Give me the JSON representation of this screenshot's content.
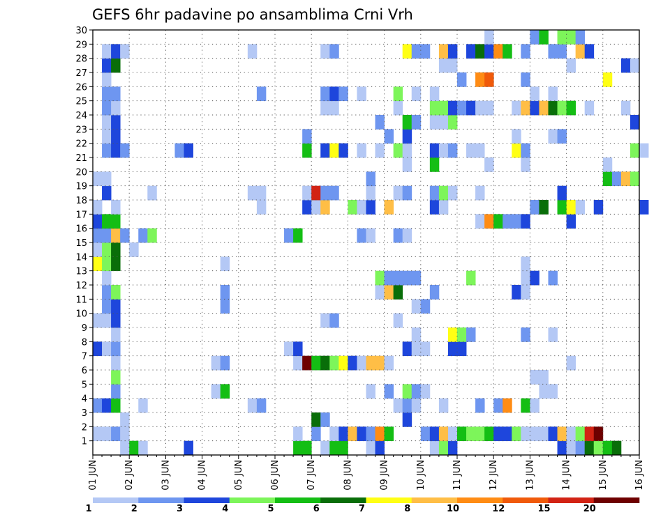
{
  "chart_data": {
    "type": "heatmap",
    "title": "GEFS 6hr padavine po ansamblima Crni Vrh",
    "x_ticks": [
      "01 JUN",
      "02 JUN",
      "03 JUN",
      "04 JUN",
      "05 JUN",
      "06 JUN",
      "07 JUN",
      "08 JUN",
      "09 JUN",
      "10 JUN",
      "11 JUN",
      "12 JUN",
      "13 JUN",
      "14 JUN",
      "15 JUN",
      "16 JUN"
    ],
    "y_ticks": [
      "1",
      "2",
      "3",
      "4",
      "5",
      "6",
      "7",
      "8",
      "9",
      "10",
      "11",
      "12",
      "13",
      "14",
      "15",
      "16",
      "17",
      "18",
      "19",
      "20",
      "21",
      "22",
      "23",
      "24",
      "25",
      "26",
      "27",
      "28",
      "29",
      "30"
    ],
    "x_range": [
      "01 JUN 00Z",
      "16 JUN 00Z"
    ],
    "x_step_hours": 6,
    "y_range": [
      0,
      30
    ],
    "grid": true,
    "legend": {
      "placement": "bottom",
      "labels": [
        "1",
        "2",
        "3",
        "4",
        "5",
        "6",
        "7",
        "8",
        "10",
        "12",
        "15",
        "20"
      ],
      "colors": [
        "#b4c8f5",
        "#6e96f0",
        "#1e46dc",
        "#7df55a",
        "#14be14",
        "#096e09",
        "#ffff14",
        "#ffbe46",
        "#ff8c14",
        "#f05a0a",
        "#d22314",
        "#6e0000"
      ]
    },
    "level_colors": {
      "1": "#b4c8f5",
      "2": "#6e96f0",
      "3": "#1e46dc",
      "4": "#7df55a",
      "5": "#14be14",
      "6": "#096e09",
      "7": "#ffff14",
      "8": "#ffbe46",
      "9": "#ff8c14",
      "10": "#f05a0a",
      "11": "#d22314",
      "12": "#6e0000"
    },
    "cells_note": "each cell = [member, 6h step index from 01 JUN 00Z, color level 1-12]",
    "cells": [
      [
        1,
        3,
        1
      ],
      [
        1,
        4,
        5
      ],
      [
        1,
        5,
        1
      ],
      [
        1,
        10,
        3
      ],
      [
        1,
        22,
        5
      ],
      [
        1,
        23,
        5
      ],
      [
        1,
        25,
        1
      ],
      [
        1,
        26,
        5
      ],
      [
        1,
        27,
        5
      ],
      [
        1,
        30,
        1
      ],
      [
        1,
        31,
        3
      ],
      [
        1,
        37,
        1
      ],
      [
        1,
        38,
        4
      ],
      [
        1,
        39,
        3
      ],
      [
        1,
        51,
        3
      ],
      [
        1,
        52,
        1
      ],
      [
        1,
        53,
        2
      ],
      [
        1,
        54,
        6
      ],
      [
        1,
        55,
        4
      ],
      [
        1,
        56,
        5
      ],
      [
        1,
        57,
        6
      ],
      [
        2,
        0,
        1
      ],
      [
        2,
        1,
        1
      ],
      [
        2,
        2,
        2
      ],
      [
        2,
        3,
        1
      ],
      [
        2,
        22,
        1
      ],
      [
        2,
        24,
        2
      ],
      [
        2,
        26,
        1
      ],
      [
        2,
        27,
        3
      ],
      [
        2,
        28,
        8
      ],
      [
        2,
        29,
        3
      ],
      [
        2,
        30,
        2
      ],
      [
        2,
        31,
        9
      ],
      [
        2,
        32,
        5
      ],
      [
        2,
        36,
        2
      ],
      [
        2,
        37,
        3
      ],
      [
        2,
        38,
        8
      ],
      [
        2,
        39,
        1
      ],
      [
        2,
        40,
        5
      ],
      [
        2,
        41,
        4
      ],
      [
        2,
        42,
        4
      ],
      [
        2,
        43,
        5
      ],
      [
        2,
        44,
        3
      ],
      [
        2,
        45,
        3
      ],
      [
        2,
        46,
        4
      ],
      [
        2,
        47,
        1
      ],
      [
        2,
        48,
        1
      ],
      [
        2,
        49,
        1
      ],
      [
        2,
        50,
        3
      ],
      [
        2,
        51,
        8
      ],
      [
        2,
        52,
        1
      ],
      [
        2,
        53,
        4
      ],
      [
        2,
        54,
        11
      ],
      [
        2,
        55,
        12
      ],
      [
        3,
        3,
        1
      ],
      [
        3,
        24,
        6
      ],
      [
        3,
        25,
        2
      ],
      [
        3,
        34,
        3
      ],
      [
        4,
        0,
        2
      ],
      [
        4,
        1,
        3
      ],
      [
        4,
        2,
        5
      ],
      [
        4,
        5,
        1
      ],
      [
        4,
        17,
        1
      ],
      [
        4,
        18,
        2
      ],
      [
        4,
        33,
        1
      ],
      [
        4,
        34,
        2
      ],
      [
        4,
        35,
        1
      ],
      [
        4,
        38,
        1
      ],
      [
        4,
        42,
        2
      ],
      [
        4,
        44,
        2
      ],
      [
        4,
        45,
        9
      ],
      [
        4,
        47,
        5
      ],
      [
        4,
        48,
        1
      ],
      [
        5,
        2,
        2
      ],
      [
        5,
        13,
        1
      ],
      [
        5,
        14,
        5
      ],
      [
        5,
        30,
        1
      ],
      [
        5,
        32,
        2
      ],
      [
        5,
        34,
        4
      ],
      [
        5,
        35,
        2
      ],
      [
        5,
        36,
        1
      ],
      [
        5,
        49,
        1
      ],
      [
        5,
        50,
        1
      ],
      [
        6,
        2,
        4
      ],
      [
        6,
        48,
        1
      ],
      [
        6,
        49,
        1
      ],
      [
        7,
        2,
        1
      ],
      [
        7,
        13,
        1
      ],
      [
        7,
        14,
        2
      ],
      [
        7,
        22,
        1
      ],
      [
        7,
        23,
        12
      ],
      [
        7,
        24,
        5
      ],
      [
        7,
        25,
        6
      ],
      [
        7,
        26,
        4
      ],
      [
        7,
        27,
        7
      ],
      [
        7,
        28,
        3
      ],
      [
        7,
        29,
        1
      ],
      [
        7,
        30,
        8
      ],
      [
        7,
        31,
        8
      ],
      [
        7,
        32,
        1
      ],
      [
        7,
        52,
        1
      ],
      [
        8,
        0,
        3
      ],
      [
        8,
        1,
        1
      ],
      [
        8,
        2,
        2
      ],
      [
        8,
        21,
        1
      ],
      [
        8,
        22,
        3
      ],
      [
        8,
        34,
        3
      ],
      [
        8,
        35,
        1
      ],
      [
        8,
        36,
        1
      ],
      [
        8,
        39,
        3
      ],
      [
        8,
        40,
        3
      ],
      [
        9,
        2,
        1
      ],
      [
        9,
        35,
        1
      ],
      [
        9,
        39,
        7
      ],
      [
        9,
        40,
        4
      ],
      [
        9,
        41,
        2
      ],
      [
        9,
        47,
        2
      ],
      [
        9,
        50,
        1
      ],
      [
        10,
        0,
        1
      ],
      [
        10,
        1,
        1
      ],
      [
        10,
        2,
        3
      ],
      [
        10,
        25,
        1
      ],
      [
        10,
        26,
        2
      ],
      [
        10,
        33,
        1
      ],
      [
        11,
        1,
        2
      ],
      [
        11,
        2,
        3
      ],
      [
        11,
        14,
        2
      ],
      [
        11,
        35,
        1
      ],
      [
        11,
        36,
        2
      ],
      [
        12,
        1,
        2
      ],
      [
        12,
        2,
        4
      ],
      [
        12,
        14,
        2
      ],
      [
        12,
        31,
        1
      ],
      [
        12,
        32,
        8
      ],
      [
        12,
        33,
        6
      ],
      [
        12,
        37,
        2
      ],
      [
        12,
        46,
        3
      ],
      [
        12,
        47,
        1
      ],
      [
        13,
        1,
        1
      ],
      [
        13,
        31,
        4
      ],
      [
        13,
        32,
        2
      ],
      [
        13,
        33,
        2
      ],
      [
        13,
        34,
        2
      ],
      [
        13,
        35,
        2
      ],
      [
        13,
        41,
        4
      ],
      [
        13,
        47,
        1
      ],
      [
        13,
        48,
        3
      ],
      [
        13,
        50,
        2
      ],
      [
        14,
        0,
        7
      ],
      [
        14,
        1,
        4
      ],
      [
        14,
        2,
        6
      ],
      [
        14,
        14,
        1
      ],
      [
        14,
        47,
        1
      ],
      [
        15,
        0,
        1
      ],
      [
        15,
        1,
        4
      ],
      [
        15,
        2,
        6
      ],
      [
        15,
        4,
        1
      ],
      [
        16,
        0,
        2
      ],
      [
        16,
        1,
        2
      ],
      [
        16,
        2,
        8
      ],
      [
        16,
        3,
        2
      ],
      [
        16,
        5,
        2
      ],
      [
        16,
        6,
        4
      ],
      [
        16,
        21,
        2
      ],
      [
        16,
        22,
        5
      ],
      [
        16,
        29,
        2
      ],
      [
        16,
        30,
        1
      ],
      [
        16,
        33,
        2
      ],
      [
        16,
        34,
        1
      ],
      [
        17,
        0,
        3
      ],
      [
        17,
        1,
        5
      ],
      [
        17,
        2,
        5
      ],
      [
        17,
        42,
        1
      ],
      [
        17,
        43,
        9
      ],
      [
        17,
        44,
        5
      ],
      [
        17,
        45,
        2
      ],
      [
        17,
        46,
        2
      ],
      [
        17,
        47,
        3
      ],
      [
        17,
        52,
        3
      ],
      [
        18,
        0,
        1
      ],
      [
        18,
        2,
        1
      ],
      [
        18,
        18,
        1
      ],
      [
        18,
        23,
        3
      ],
      [
        18,
        24,
        1
      ],
      [
        18,
        25,
        8
      ],
      [
        18,
        28,
        4
      ],
      [
        18,
        29,
        1
      ],
      [
        18,
        30,
        3
      ],
      [
        18,
        32,
        8
      ],
      [
        18,
        37,
        3
      ],
      [
        18,
        38,
        1
      ],
      [
        18,
        48,
        2
      ],
      [
        18,
        49,
        6
      ],
      [
        18,
        51,
        5
      ],
      [
        18,
        52,
        7
      ],
      [
        18,
        53,
        1
      ],
      [
        18,
        55,
        3
      ],
      [
        18,
        60,
        3
      ],
      [
        19,
        1,
        3
      ],
      [
        19,
        6,
        1
      ],
      [
        19,
        17,
        1
      ],
      [
        19,
        18,
        1
      ],
      [
        19,
        23,
        1
      ],
      [
        19,
        24,
        11
      ],
      [
        19,
        25,
        2
      ],
      [
        19,
        26,
        2
      ],
      [
        19,
        30,
        1
      ],
      [
        19,
        33,
        1
      ],
      [
        19,
        34,
        2
      ],
      [
        19,
        37,
        2
      ],
      [
        19,
        38,
        4
      ],
      [
        19,
        39,
        1
      ],
      [
        19,
        42,
        1
      ],
      [
        19,
        51,
        3
      ],
      [
        20,
        0,
        1
      ],
      [
        20,
        1,
        1
      ],
      [
        20,
        30,
        2
      ],
      [
        20,
        56,
        5
      ],
      [
        20,
        57,
        2
      ],
      [
        20,
        58,
        8
      ],
      [
        20,
        59,
        4
      ],
      [
        21,
        34,
        1
      ],
      [
        21,
        37,
        5
      ],
      [
        21,
        43,
        1
      ],
      [
        21,
        47,
        1
      ],
      [
        21,
        56,
        1
      ],
      [
        22,
        1,
        2
      ],
      [
        22,
        2,
        3
      ],
      [
        22,
        3,
        2
      ],
      [
        22,
        9,
        2
      ],
      [
        22,
        10,
        3
      ],
      [
        22,
        23,
        5
      ],
      [
        22,
        25,
        3
      ],
      [
        22,
        26,
        7
      ],
      [
        22,
        27,
        3
      ],
      [
        22,
        29,
        1
      ],
      [
        22,
        31,
        1
      ],
      [
        22,
        33,
        4
      ],
      [
        22,
        34,
        1
      ],
      [
        22,
        37,
        3
      ],
      [
        22,
        38,
        1
      ],
      [
        22,
        39,
        2
      ],
      [
        22,
        41,
        1
      ],
      [
        22,
        42,
        1
      ],
      [
        22,
        46,
        7
      ],
      [
        22,
        47,
        2
      ],
      [
        22,
        59,
        4
      ],
      [
        22,
        60,
        1
      ],
      [
        23,
        1,
        1
      ],
      [
        23,
        2,
        3
      ],
      [
        23,
        23,
        2
      ],
      [
        23,
        32,
        2
      ],
      [
        23,
        34,
        3
      ],
      [
        23,
        46,
        1
      ],
      [
        23,
        50,
        1
      ],
      [
        23,
        51,
        2
      ],
      [
        24,
        1,
        1
      ],
      [
        24,
        2,
        3
      ],
      [
        24,
        31,
        2
      ],
      [
        24,
        34,
        5
      ],
      [
        24,
        35,
        2
      ],
      [
        24,
        37,
        1
      ],
      [
        24,
        38,
        1
      ],
      [
        24,
        39,
        4
      ],
      [
        24,
        59,
        3
      ],
      [
        25,
        1,
        2
      ],
      [
        25,
        2,
        1
      ],
      [
        25,
        25,
        1
      ],
      [
        25,
        26,
        1
      ],
      [
        25,
        33,
        1
      ],
      [
        25,
        37,
        4
      ],
      [
        25,
        38,
        4
      ],
      [
        25,
        39,
        3
      ],
      [
        25,
        40,
        2
      ],
      [
        25,
        41,
        3
      ],
      [
        25,
        42,
        1
      ],
      [
        25,
        43,
        1
      ],
      [
        25,
        46,
        1
      ],
      [
        25,
        47,
        8
      ],
      [
        25,
        48,
        3
      ],
      [
        25,
        49,
        8
      ],
      [
        25,
        50,
        6
      ],
      [
        25,
        51,
        4
      ],
      [
        25,
        52,
        5
      ],
      [
        25,
        54,
        1
      ],
      [
        25,
        58,
        1
      ],
      [
        26,
        1,
        2
      ],
      [
        26,
        2,
        2
      ],
      [
        26,
        18,
        2
      ],
      [
        26,
        25,
        2
      ],
      [
        26,
        26,
        3
      ],
      [
        26,
        27,
        2
      ],
      [
        26,
        29,
        1
      ],
      [
        26,
        33,
        4
      ],
      [
        26,
        35,
        1
      ],
      [
        26,
        37,
        1
      ],
      [
        26,
        48,
        1
      ],
      [
        26,
        50,
        1
      ],
      [
        27,
        1,
        1
      ],
      [
        27,
        40,
        2
      ],
      [
        27,
        42,
        9
      ],
      [
        27,
        43,
        10
      ],
      [
        27,
        47,
        2
      ],
      [
        27,
        56,
        7
      ],
      [
        28,
        1,
        3
      ],
      [
        28,
        2,
        6
      ],
      [
        28,
        38,
        1
      ],
      [
        28,
        39,
        1
      ],
      [
        28,
        52,
        1
      ],
      [
        28,
        58,
        3
      ],
      [
        28,
        59,
        1
      ],
      [
        29,
        1,
        1
      ],
      [
        29,
        2,
        3
      ],
      [
        29,
        3,
        1
      ],
      [
        29,
        17,
        1
      ],
      [
        29,
        25,
        1
      ],
      [
        29,
        26,
        2
      ],
      [
        29,
        34,
        7
      ],
      [
        29,
        35,
        2
      ],
      [
        29,
        36,
        2
      ],
      [
        29,
        38,
        8
      ],
      [
        29,
        39,
        3
      ],
      [
        29,
        41,
        3
      ],
      [
        29,
        42,
        6
      ],
      [
        29,
        43,
        3
      ],
      [
        29,
        44,
        9
      ],
      [
        29,
        45,
        5
      ],
      [
        29,
        47,
        2
      ],
      [
        29,
        50,
        2
      ],
      [
        29,
        51,
        2
      ],
      [
        29,
        53,
        8
      ],
      [
        29,
        54,
        3
      ],
      [
        30,
        43,
        1
      ],
      [
        30,
        48,
        2
      ],
      [
        30,
        49,
        5
      ],
      [
        30,
        51,
        4
      ],
      [
        30,
        52,
        4
      ],
      [
        30,
        53,
        2
      ]
    ]
  }
}
